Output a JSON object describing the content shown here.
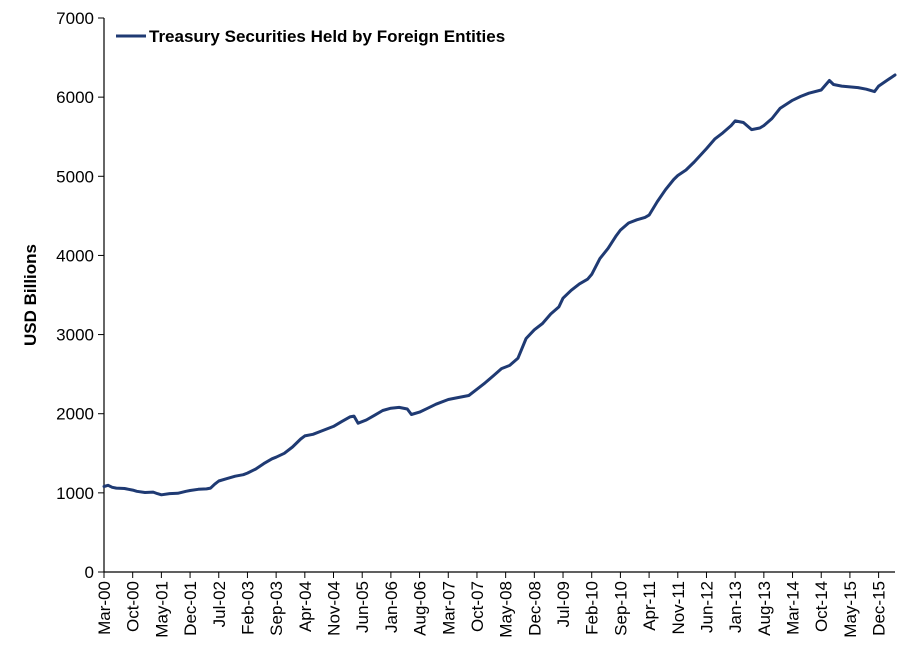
{
  "chart_data": {
    "type": "line",
    "title": "",
    "xlabel": "",
    "ylabel": "USD Billions",
    "ylim": [
      0,
      7000
    ],
    "yticks": [
      0,
      1000,
      2000,
      3000,
      4000,
      5000,
      6000,
      7000
    ],
    "xtick_labels": [
      "Mar-00",
      "Oct-00",
      "May-01",
      "Dec-01",
      "Jul-02",
      "Feb-03",
      "Sep-03",
      "Apr-04",
      "Nov-04",
      "Jun-05",
      "Jan-06",
      "Aug-06",
      "Mar-07",
      "Oct-07",
      "May-08",
      "Dec-08",
      "Jul-09",
      "Feb-10",
      "Sep-10",
      "Apr-11",
      "Nov-11",
      "Jun-12",
      "Jan-13",
      "Aug-13",
      "Mar-14",
      "Oct-14",
      "May-15",
      "Dec-15"
    ],
    "grid": false,
    "legend_position": "top-left",
    "series": [
      {
        "name": "Treasury Securities Held by Foreign Entities",
        "color": "#1f3a73",
        "points": [
          [
            "Mar-00",
            1080
          ],
          [
            "Apr-00",
            1095
          ],
          [
            "May-00",
            1070
          ],
          [
            "Jun-00",
            1060
          ],
          [
            "Aug-00",
            1055
          ],
          [
            "Oct-00",
            1035
          ],
          [
            "Nov-00",
            1020
          ],
          [
            "Jan-01",
            1005
          ],
          [
            "Mar-01",
            1010
          ],
          [
            "Apr-01",
            990
          ],
          [
            "May-01",
            975
          ],
          [
            "Jul-01",
            990
          ],
          [
            "Sep-01",
            995
          ],
          [
            "Nov-01",
            1020
          ],
          [
            "Dec-01",
            1030
          ],
          [
            "Feb-02",
            1045
          ],
          [
            "Apr-02",
            1050
          ],
          [
            "May-02",
            1060
          ],
          [
            "Jun-02",
            1110
          ],
          [
            "Jul-02",
            1150
          ],
          [
            "Sep-02",
            1180
          ],
          [
            "Nov-02",
            1210
          ],
          [
            "Jan-03",
            1230
          ],
          [
            "Feb-03",
            1250
          ],
          [
            "Apr-03",
            1300
          ],
          [
            "Jun-03",
            1370
          ],
          [
            "Aug-03",
            1430
          ],
          [
            "Sep-03",
            1450
          ],
          [
            "Nov-03",
            1500
          ],
          [
            "Jan-04",
            1580
          ],
          [
            "Mar-04",
            1680
          ],
          [
            "Apr-04",
            1720
          ],
          [
            "Jun-04",
            1740
          ],
          [
            "Aug-04",
            1780
          ],
          [
            "Nov-04",
            1840
          ],
          [
            "Jan-05",
            1900
          ],
          [
            "Mar-05",
            1960
          ],
          [
            "Apr-05",
            1970
          ],
          [
            "May-05",
            1880
          ],
          [
            "Jul-05",
            1920
          ],
          [
            "Sep-05",
            1980
          ],
          [
            "Nov-05",
            2040
          ],
          [
            "Jan-06",
            2070
          ],
          [
            "Mar-06",
            2080
          ],
          [
            "May-06",
            2060
          ],
          [
            "Jun-06",
            1990
          ],
          [
            "Aug-06",
            2020
          ],
          [
            "Oct-06",
            2070
          ],
          [
            "Dec-06",
            2120
          ],
          [
            "Mar-07",
            2180
          ],
          [
            "May-07",
            2200
          ],
          [
            "Aug-07",
            2230
          ],
          [
            "Oct-07",
            2310
          ],
          [
            "Dec-07",
            2390
          ],
          [
            "Feb-08",
            2480
          ],
          [
            "Apr-08",
            2570
          ],
          [
            "Jun-08",
            2610
          ],
          [
            "Aug-08",
            2700
          ],
          [
            "Oct-08",
            2950
          ],
          [
            "Dec-08",
            3060
          ],
          [
            "Feb-09",
            3140
          ],
          [
            "Apr-09",
            3260
          ],
          [
            "Jun-09",
            3350
          ],
          [
            "Jul-09",
            3460
          ],
          [
            "Sep-09",
            3560
          ],
          [
            "Nov-09",
            3640
          ],
          [
            "Jan-10",
            3700
          ],
          [
            "Feb-10",
            3760
          ],
          [
            "Apr-10",
            3960
          ],
          [
            "Jun-10",
            4090
          ],
          [
            "Aug-10",
            4250
          ],
          [
            "Sep-10",
            4320
          ],
          [
            "Nov-10",
            4410
          ],
          [
            "Jan-11",
            4450
          ],
          [
            "Mar-11",
            4480
          ],
          [
            "Apr-11",
            4510
          ],
          [
            "Jun-11",
            4680
          ],
          [
            "Aug-11",
            4830
          ],
          [
            "Oct-11",
            4960
          ],
          [
            "Nov-11",
            5010
          ],
          [
            "Jan-12",
            5080
          ],
          [
            "Mar-12",
            5180
          ],
          [
            "Jun-12",
            5350
          ],
          [
            "Aug-12",
            5470
          ],
          [
            "Oct-12",
            5550
          ],
          [
            "Dec-12",
            5640
          ],
          [
            "Jan-13",
            5700
          ],
          [
            "Mar-13",
            5680
          ],
          [
            "May-13",
            5590
          ],
          [
            "Jul-13",
            5610
          ],
          [
            "Aug-13",
            5640
          ],
          [
            "Oct-13",
            5730
          ],
          [
            "Dec-13",
            5860
          ],
          [
            "Mar-14",
            5960
          ],
          [
            "May-14",
            6010
          ],
          [
            "Jul-14",
            6050
          ],
          [
            "Oct-14",
            6090
          ],
          [
            "Dec-14",
            6210
          ],
          [
            "Jan-15",
            6160
          ],
          [
            "Mar-15",
            6140
          ],
          [
            "May-15",
            6130
          ],
          [
            "Jul-15",
            6120
          ],
          [
            "Sep-15",
            6100
          ],
          [
            "Nov-15",
            6070
          ],
          [
            "Dec-15",
            6140
          ],
          [
            "Feb-16",
            6210
          ],
          [
            "Apr-16",
            6280
          ]
        ]
      }
    ]
  }
}
